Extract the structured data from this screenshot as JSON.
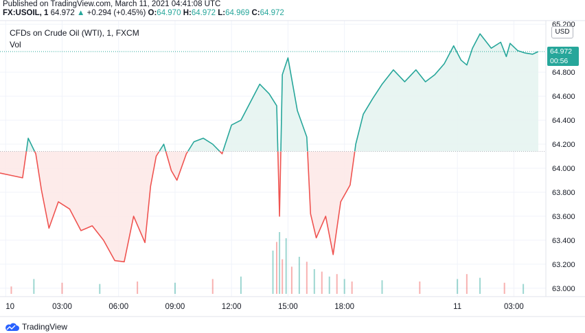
{
  "header": {
    "published": "Published on TradingView.com, March 11, 2021 04:41:08 UTC",
    "symbol": "FX:USOIL, 1",
    "last": "64.972",
    "change": "+0.294 (+0.45%)",
    "o_label": "O:",
    "o_value": "64.970",
    "h_label": "H:",
    "h_value": "64.972",
    "l_label": "L:",
    "l_value": "64.969",
    "c_label": "C:",
    "c_value": "64.972"
  },
  "chart_title": "CFDs on Crude Oil (WTI), 1, FXCM",
  "vol_label": "Vol",
  "currency": "USD",
  "last_price_tag": {
    "price": "64.972",
    "countdown": "00:56"
  },
  "footer": {
    "brand": "TradingView"
  },
  "colors": {
    "up": "#26a69a",
    "down": "#ef5350",
    "up_fill": "#e6f4f1",
    "down_fill": "#fde9e8",
    "grid": "#f0f3fa",
    "axis_text": "#131722"
  },
  "chart_data": {
    "type": "area",
    "baseline": 64.14,
    "ylim": [
      62.93,
      65.23
    ],
    "y_ticks": [
      "65.200",
      "64.800",
      "64.600",
      "64.400",
      "64.200",
      "64.000",
      "63.800",
      "63.600",
      "63.400",
      "63.200",
      "63.000"
    ],
    "y_tick_values": [
      65.2,
      64.8,
      64.6,
      64.4,
      64.2,
      64.0,
      63.8,
      63.6,
      63.4,
      63.2,
      63.0
    ],
    "x_ticks": [
      "10",
      "03:00",
      "06:00",
      "09:00",
      "12:00",
      "15:00",
      "18:00",
      "11",
      "03:00"
    ],
    "x_tick_hours": [
      0,
      3,
      6,
      9,
      12,
      15,
      18,
      24,
      27
    ],
    "x_range_hours": [
      -0.3,
      28.7
    ],
    "hours": [
      -0.3,
      0.3,
      0.9,
      1.2,
      1.6,
      1.9,
      2.3,
      2.8,
      3.4,
      4.0,
      4.6,
      5.2,
      5.8,
      6.3,
      6.8,
      7.4,
      7.7,
      8.0,
      8.4,
      8.8,
      9.1,
      9.6,
      10.0,
      10.5,
      11.0,
      11.5,
      12.0,
      12.5,
      13.0,
      13.5,
      14.0,
      14.4,
      14.55,
      14.7,
      15.0,
      15.5,
      16.0,
      16.2,
      16.5,
      17.0,
      17.4,
      17.8,
      18.3,
      18.6,
      19.0,
      19.5,
      20.0,
      20.6,
      21.2,
      21.8,
      22.3,
      22.8,
      23.3,
      23.8,
      24.2,
      24.5,
      24.8,
      25.2,
      25.8,
      26.3,
      26.6,
      26.8,
      27.2,
      27.6,
      28.0,
      28.3
    ],
    "values": [
      63.96,
      63.94,
      63.92,
      64.25,
      64.12,
      63.82,
      63.5,
      63.72,
      63.66,
      63.48,
      63.52,
      63.4,
      63.23,
      63.22,
      63.6,
      63.38,
      63.85,
      64.1,
      64.2,
      63.98,
      63.9,
      64.12,
      64.22,
      64.25,
      64.2,
      64.12,
      64.36,
      64.4,
      64.55,
      64.7,
      64.62,
      64.52,
      63.6,
      64.78,
      64.92,
      64.48,
      64.26,
      63.62,
      63.42,
      63.6,
      63.28,
      63.72,
      63.86,
      64.2,
      64.45,
      64.58,
      64.7,
      64.82,
      64.72,
      64.82,
      64.72,
      64.78,
      64.87,
      65.02,
      64.9,
      64.86,
      65.0,
      65.12,
      65.0,
      65.05,
      64.93,
      65.04,
      64.98,
      64.96,
      64.95,
      64.972
    ],
    "volume_max": 50,
    "volume_hours": [
      14.2,
      14.4,
      14.55,
      14.7,
      14.9,
      15.2,
      15.6,
      16.0,
      16.4,
      16.8,
      17.2,
      17.6,
      18.0,
      18.4,
      12.5,
      11.0,
      9.0,
      7.0,
      5.0,
      3.0,
      1.5,
      0.3,
      20.0,
      22.0,
      24.0,
      24.5,
      25.2,
      26.5,
      27.5
    ],
    "volume_values": [
      35,
      42,
      50,
      28,
      45,
      22,
      30,
      26,
      20,
      18,
      14,
      16,
      12,
      10,
      14,
      12,
      9,
      10,
      8,
      9,
      12,
      6,
      11,
      10,
      12,
      16,
      13,
      9,
      8
    ]
  }
}
